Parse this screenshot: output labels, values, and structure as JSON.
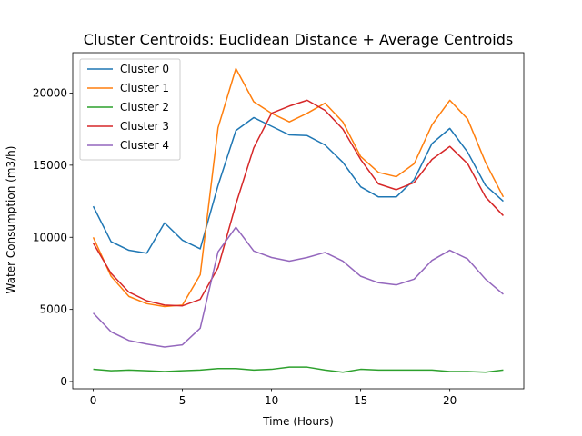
{
  "chart_data": {
    "type": "line",
    "title": "Cluster Centroids: Euclidean Distance + Average Centroids",
    "xlabel": "Time (Hours)",
    "ylabel": "Water Consumption (m3/h)",
    "xlim": [
      -1.15,
      24.15
    ],
    "ylim": [
      -500,
      22800
    ],
    "xticks": [
      0,
      5,
      10,
      15,
      20
    ],
    "yticks": [
      0,
      5000,
      10000,
      15000,
      20000
    ],
    "legend_position": "top-left",
    "x": [
      0,
      1,
      2,
      3,
      4,
      5,
      6,
      7,
      8,
      9,
      10,
      11,
      12,
      13,
      14,
      15,
      16,
      17,
      18,
      19,
      20,
      21,
      22,
      23
    ],
    "series": [
      {
        "name": "Cluster 0",
        "color": "#1f77b4",
        "values": [
          12150,
          9700,
          9100,
          8900,
          11000,
          9800,
          9200,
          13600,
          17400,
          18300,
          17700,
          17100,
          17050,
          16400,
          15200,
          13500,
          12800,
          12800,
          14000,
          16500,
          17550,
          15900,
          13600,
          12500
        ]
      },
      {
        "name": "Cluster 1",
        "color": "#ff7f0e",
        "values": [
          10000,
          7300,
          5900,
          5400,
          5200,
          5300,
          7400,
          17600,
          21700,
          19400,
          18600,
          18000,
          18600,
          19300,
          18000,
          15600,
          14500,
          14200,
          15100,
          17800,
          19500,
          18200,
          15200,
          12800
        ]
      },
      {
        "name": "Cluster 2",
        "color": "#2ca02c",
        "values": [
          850,
          750,
          800,
          750,
          700,
          750,
          800,
          900,
          900,
          800,
          850,
          1000,
          1000,
          800,
          650,
          850,
          800,
          800,
          800,
          800,
          700,
          700,
          650,
          800
        ]
      },
      {
        "name": "Cluster 3",
        "color": "#d62728",
        "values": [
          9600,
          7500,
          6200,
          5600,
          5300,
          5250,
          5700,
          7900,
          12300,
          16200,
          18600,
          19100,
          19500,
          18800,
          17500,
          15400,
          13700,
          13300,
          13800,
          15400,
          16300,
          15100,
          12800,
          11500
        ]
      },
      {
        "name": "Cluster 4",
        "color": "#9467bd",
        "values": [
          4750,
          3450,
          2850,
          2600,
          2400,
          2550,
          3700,
          9000,
          10700,
          9050,
          8600,
          8350,
          8600,
          8950,
          8350,
          7300,
          6850,
          6700,
          7100,
          8400,
          9100,
          8500,
          7100,
          6050
        ]
      }
    ]
  }
}
